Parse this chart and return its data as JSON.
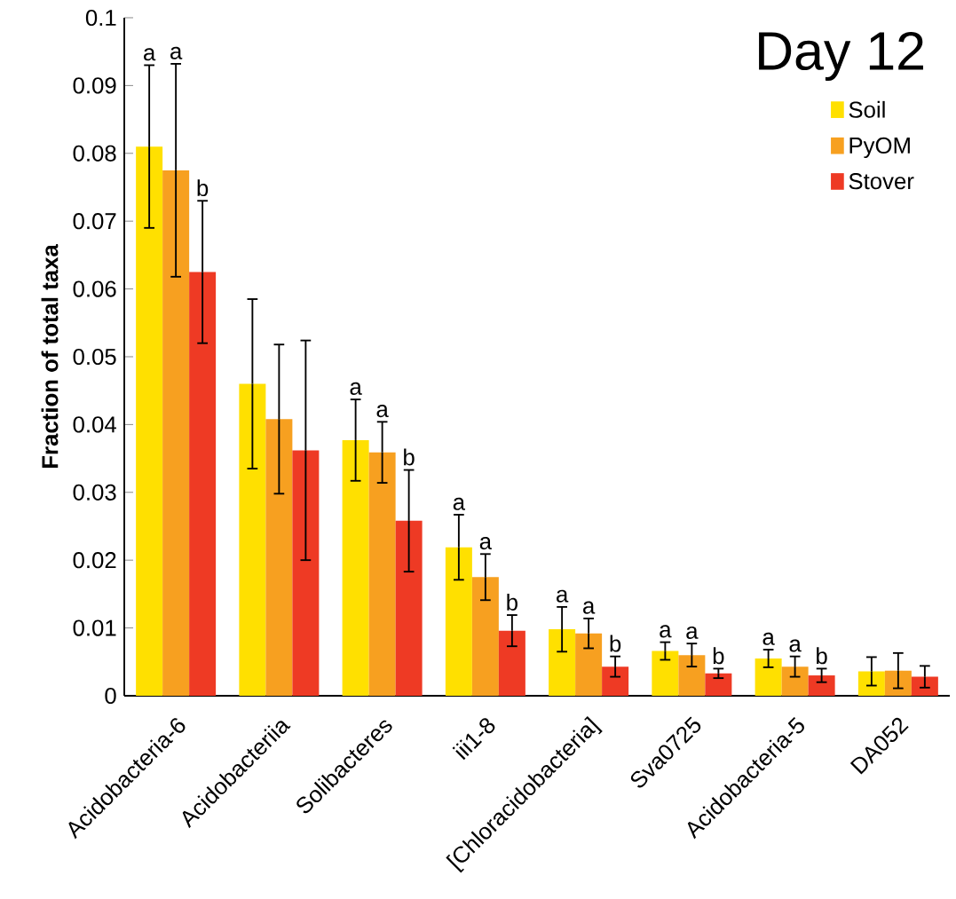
{
  "chart_data": {
    "type": "bar",
    "title": "Day 12",
    "ylabel": "Fraction of total taxa",
    "categories": [
      "Acidobacteria-6",
      "Acidobacteriia",
      "Solibacteres",
      "iii1-8",
      "[Chloracidobacteria]",
      "Sva0725",
      "Acidobacteria-5",
      "DA052"
    ],
    "series": [
      {
        "name": "Soil",
        "color": "#ffe000",
        "values": [
          0.081,
          0.046,
          0.0377,
          0.0219,
          0.0098,
          0.0066,
          0.0055,
          0.0036
        ],
        "errors": [
          0.012,
          0.0125,
          0.006,
          0.0048,
          0.0033,
          0.0013,
          0.0013,
          0.0021
        ]
      },
      {
        "name": "PyOM",
        "color": "#f7a020",
        "values": [
          0.0775,
          0.0408,
          0.0359,
          0.0175,
          0.0092,
          0.006,
          0.0043,
          0.0037
        ],
        "errors": [
          0.0157,
          0.011,
          0.0045,
          0.0034,
          0.0022,
          0.0017,
          0.0015,
          0.0026
        ]
      },
      {
        "name": "Stover",
        "color": "#ee3a24",
        "values": [
          0.0625,
          0.0362,
          0.0258,
          0.0096,
          0.0043,
          0.0033,
          0.003,
          0.0028
        ],
        "errors": [
          0.0105,
          0.0162,
          0.0075,
          0.0023,
          0.0015,
          0.0007,
          0.001,
          0.0016
        ]
      }
    ],
    "annotations": [
      "a",
      "a",
      "b",
      "a",
      "a",
      "b",
      "a",
      "a",
      "b",
      "a",
      "a",
      "b",
      "a",
      "a",
      "b",
      "a",
      "a",
      "b"
    ],
    "ylim": [
      0,
      0.1
    ],
    "yticks": [
      0,
      0.01,
      0.02,
      0.03,
      0.04,
      0.05,
      0.06,
      0.07,
      0.08,
      0.09,
      0.1
    ],
    "legend": "top right"
  }
}
